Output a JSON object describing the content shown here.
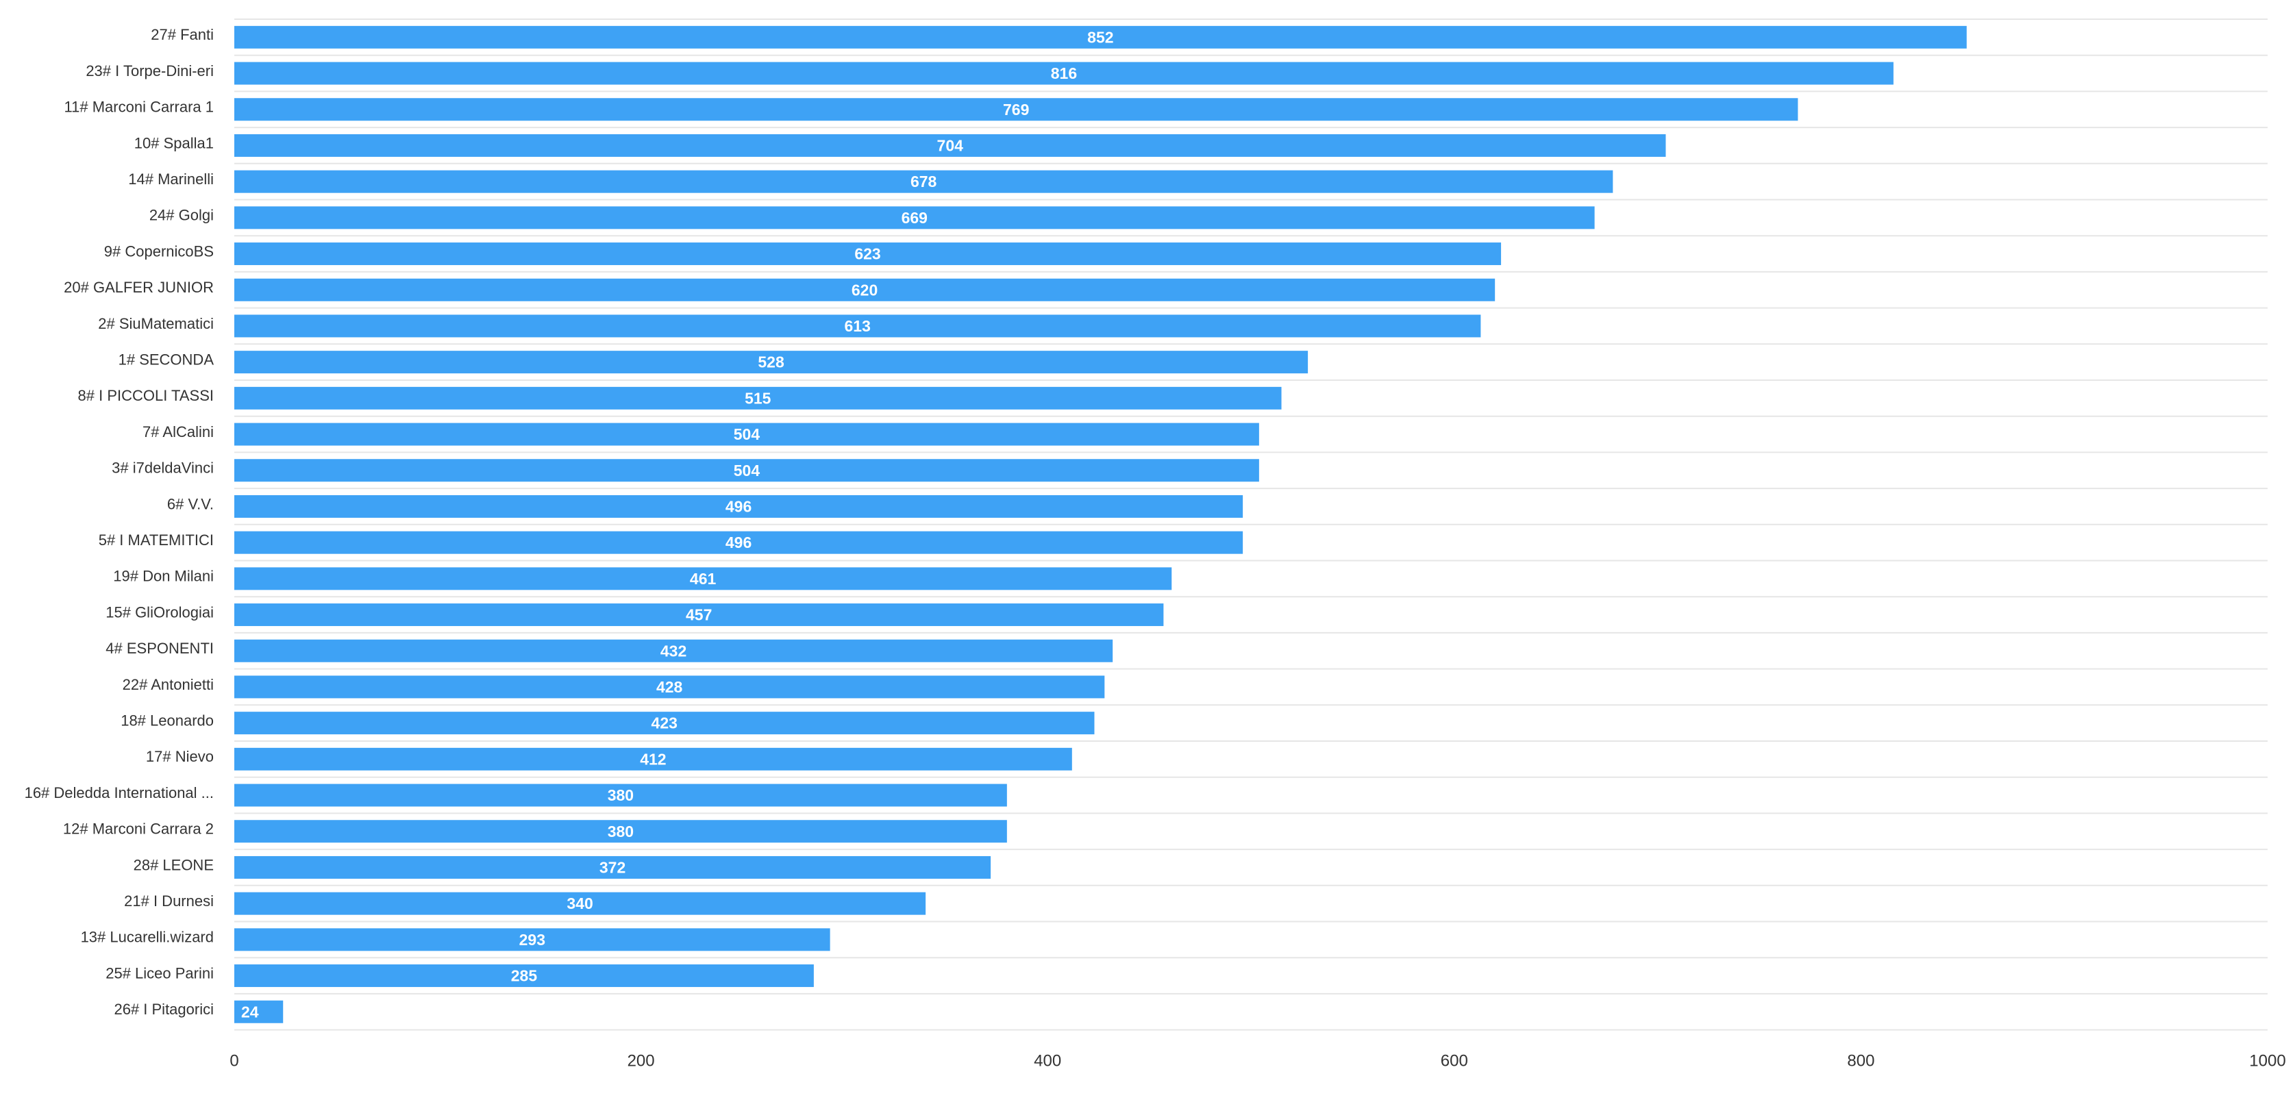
{
  "chart_data": {
    "type": "bar",
    "orientation": "horizontal",
    "categories": [
      "27# Fanti",
      "23# I Torpe-Dini-eri",
      "11# Marconi Carrara 1",
      "10# Spalla1",
      "14# Marinelli",
      "24# Golgi",
      "9# CopernicoBS",
      "20# GALFER JUNIOR",
      "2# SiuMatematici",
      "1# SECONDA",
      "8# I PICCOLI TASSI",
      "7# AlCalini",
      "3# i7deldaVinci",
      "6# V.V.",
      "5# I MATEMITICI",
      "19# Don Milani",
      "15# GliOrologiai",
      "4# ESPONENTI",
      "22# Antonietti",
      "18# Leonardo",
      "17# Nievo",
      "16# Deledda International ...",
      "12# Marconi Carrara 2",
      "28# LEONE",
      "21# I Durnesi",
      "13# Lucarelli.wizard",
      "25# Liceo Parini",
      "26# I Pitagorici"
    ],
    "values": [
      852,
      816,
      769,
      704,
      678,
      669,
      623,
      620,
      613,
      528,
      515,
      504,
      504,
      496,
      496,
      461,
      457,
      432,
      428,
      423,
      412,
      380,
      380,
      372,
      340,
      293,
      285,
      24
    ],
    "xlim": [
      0,
      1000
    ],
    "xticks": [
      0,
      200,
      400,
      600,
      800,
      1000
    ],
    "title": "",
    "xlabel": "",
    "ylabel": "",
    "grid": "horizontal lines between categories",
    "legend": "none",
    "bar_color": "#3ea2f5",
    "grid_color": "#e6e6e6"
  }
}
